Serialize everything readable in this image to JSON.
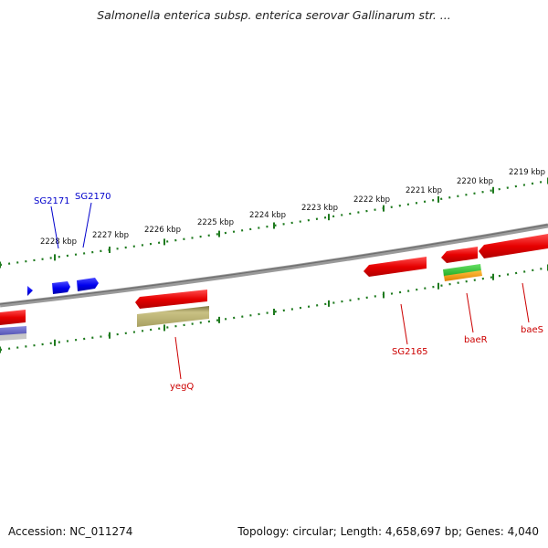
{
  "title": "Salmonella enterica subsp. enterica serovar Gallinarum str. ...",
  "footer": {
    "accession": "Accession: NC_011274",
    "topology": "Topology: circular; Length: 4,658,697 bp; Genes: 4,040"
  },
  "kbp_labels": [
    "2228 kbp",
    "2227 kbp",
    "2226 kbp",
    "2225 kbp",
    "2224 kbp",
    "2223 kbp",
    "2222 kbp",
    "2221 kbp",
    "2220 kbp",
    "2219 kbp"
  ],
  "gene_labels": {
    "sg2171": "SG2171",
    "sg2170": "SG2170",
    "yegq": "yegQ",
    "sg2165": "SG2165",
    "baer": "baeR",
    "baes": "baeS"
  },
  "colors": {
    "forward_gene": "#0000ff",
    "reverse_gene": "#e60000",
    "tick_green": "#1e7a1e",
    "backbone": "#808080",
    "olive_feature": "#b8b070",
    "green_feature": "#33cc33",
    "orange_feature": "#ff9900",
    "purple_feature": "#7070cc",
    "blue_label": "#0000cc",
    "red_label": "#cc0000"
  }
}
